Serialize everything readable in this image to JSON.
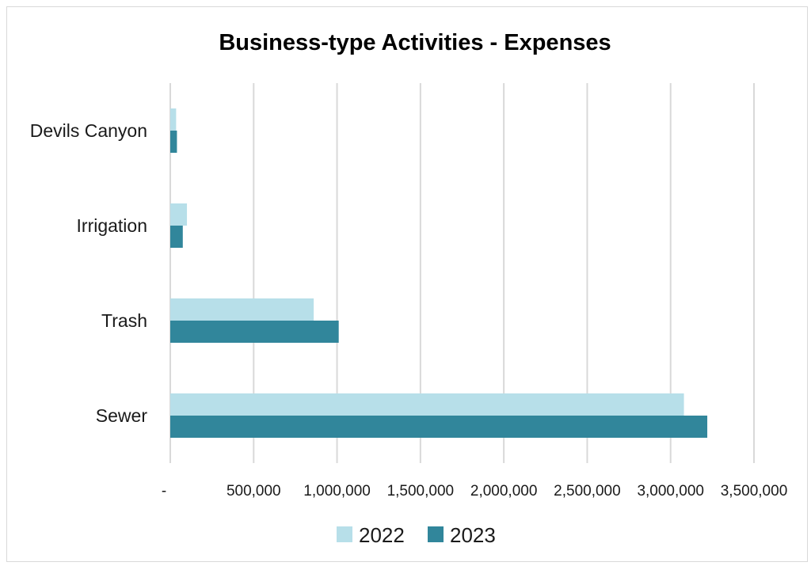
{
  "chart_data": {
    "type": "bar",
    "orientation": "horizontal",
    "title": "Business-type Activities - Expenses",
    "categories": [
      "Devils Canyon",
      "Irrigation",
      "Trash",
      "Sewer"
    ],
    "series": [
      {
        "name": "2022",
        "color": "#b7dfe9",
        "values": [
          35000,
          100000,
          860000,
          3080000
        ]
      },
      {
        "name": "2023",
        "color": "#31869b",
        "values": [
          40000,
          75000,
          1010000,
          3220000
        ]
      }
    ],
    "x_ticks": [
      "-",
      "500,000",
      "1,000,000",
      "1,500,000",
      "2,000,000",
      "2,500,000",
      "3,000,000",
      "3,500,000"
    ],
    "xlim": [
      0,
      3500000
    ],
    "xlabel": "",
    "ylabel": "",
    "grid": "vertical",
    "legend_position": "bottom"
  }
}
